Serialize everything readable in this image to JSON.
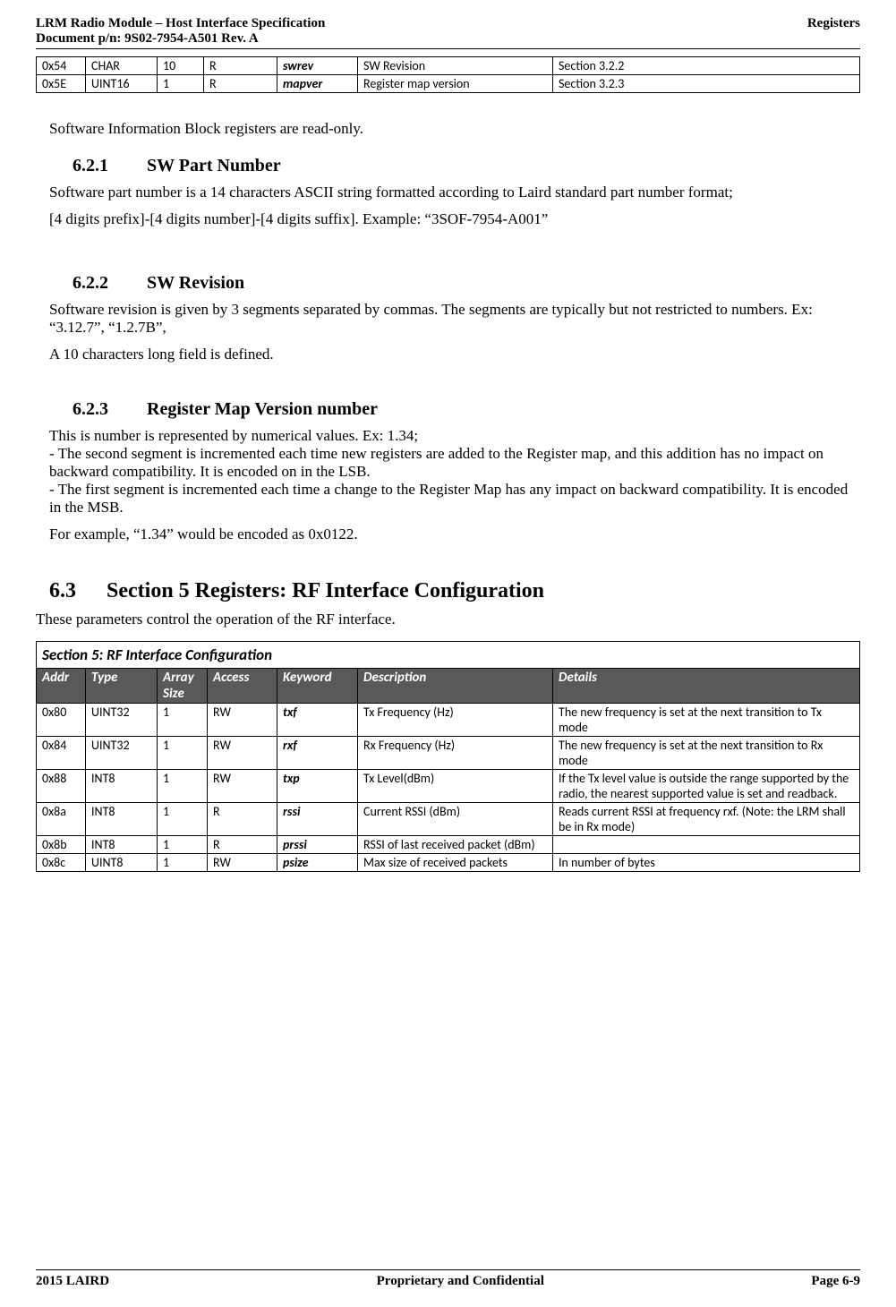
{
  "header": {
    "title_left_line1": "LRM Radio Module – Host Interface Specification",
    "title_left_line2": "Document p/n: 9S02-7954-A501 Rev. A",
    "title_right": "Registers"
  },
  "footer": {
    "left": "2015 LAIRD",
    "center": "Proprietary and Confidential",
    "right": "Page  6-9"
  },
  "top_table": {
    "col_widths": [
      "55px",
      "80px",
      "52px",
      "82px",
      "90px",
      "218px",
      "auto"
    ],
    "rows": [
      {
        "addr": "0x54",
        "type": "CHAR",
        "size": "10",
        "access": "R",
        "kw": "swrev",
        "desc": "SW Revision",
        "details": "Section 3.2.2"
      },
      {
        "addr": "0x5E",
        "type": "UINT16",
        "size": "1",
        "access": "R",
        "kw": "mapver",
        "desc": "Register map version",
        "details": "Section 3.2.3"
      }
    ]
  },
  "body": {
    "intro": "Software Information Block registers are read-only.",
    "sec621_num": "6.2.1",
    "sec621_title": "SW Part Number",
    "sec621_p1": "Software part number is a 14 characters ASCII string formatted according to Laird standard part number format;",
    "sec621_p2": "[4 digits prefix]-[4 digits number]-[4 digits suffix].  Example: “3SOF-7954-A001”",
    "sec622_num": "6.2.2",
    "sec622_title": "SW Revision",
    "sec622_p1": "Software revision is given by 3 segments separated by commas.  The segments are typically but not restricted to numbers.  Ex: “3.12.7”,  “1.2.7B”,",
    "sec622_p2": "A 10 characters long field is defined.",
    "sec623_num": "6.2.3",
    "sec623_title": "Register Map Version number",
    "sec623_p1": "This is number is represented by numerical values.  Ex: 1.34;",
    "sec623_p2": "-  The second segment is incremented each time new registers are added to the Register map, and this addition has no impact on backward compatibility.  It is encoded on in the LSB.",
    "sec623_p3": "-  The first segment is incremented each time a change to the Register Map has any impact on backward compatibility. It is encoded in the MSB.",
    "sec623_p4": "For example, “1.34” would be encoded as 0x0122.",
    "sec63_num": "6.3",
    "sec63_title": "Section 5 Registers: RF Interface Configuration",
    "sec63_intro": "These parameters control the operation of the RF interface."
  },
  "sec5_table": {
    "title": "Section 5: RF Interface Configuration",
    "col_widths": [
      "55px",
      "80px",
      "56px",
      "78px",
      "90px",
      "218px",
      "auto"
    ],
    "header_bg": "#595959",
    "header_fg": "#ffffff",
    "headers": {
      "addr": "Addr",
      "type": "Type",
      "size_l1": "Array",
      "size_l2": "Size",
      "access": "Access",
      "kw": "Keyword",
      "desc": "Description",
      "details": "Details"
    },
    "rows": [
      {
        "addr": "0x80",
        "type": "UINT32",
        "size": "1",
        "access": "RW",
        "kw": "txf",
        "desc": "Tx Frequency (Hz)",
        "details": "The new frequency is set at the next transition to Tx mode"
      },
      {
        "addr": "0x84",
        "type": "UINT32",
        "size": "1",
        "access": "RW",
        "kw": "rxf",
        "desc": "Rx Frequency (Hz)",
        "details": "The new frequency is set at the next transition to Rx mode"
      },
      {
        "addr": "0x88",
        "type": "INT8",
        "size": "1",
        "access": "RW",
        "kw": "txp",
        "desc": "Tx Level(dBm)",
        "details": "If the Tx level value is outside the range supported by the radio, the nearest supported value is set and readback."
      },
      {
        "addr": "0x8a",
        "type": "INT8",
        "size": "1",
        "access": "R",
        "kw": "rssi",
        "desc": "Current RSSI (dBm)",
        "details": "Reads current RSSI at frequency rxf.  (Note: the LRM shall be in Rx mode)"
      },
      {
        "addr": "0x8b",
        "type": "INT8",
        "size": "1",
        "access": "R",
        "kw": "prssi",
        "desc": "RSSI of last received packet (dBm)",
        "details": ""
      },
      {
        "addr": "0x8c",
        "type": "UINT8",
        "size": "1",
        "access": "RW",
        "kw": "psize",
        "desc": "Max size of received packets",
        "details": "In number of bytes"
      }
    ]
  }
}
